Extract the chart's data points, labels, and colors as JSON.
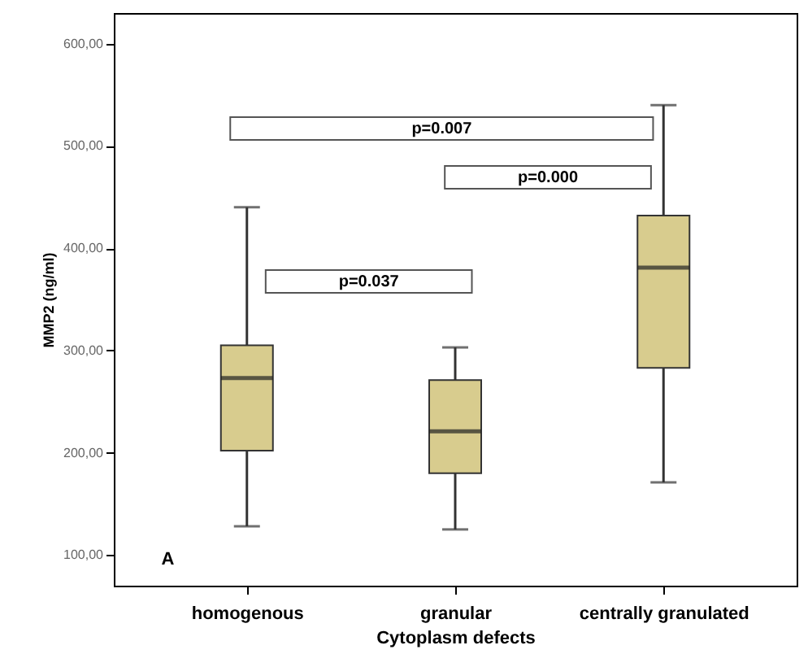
{
  "chart_data": {
    "type": "box",
    "xlabel": "Cytoplasm defects",
    "ylabel": "MMP2 (ng/ml)",
    "categories": [
      "homogenous",
      "granular",
      "centrally granulated"
    ],
    "boxes": [
      {
        "low": 128,
        "q1": 202,
        "median": 273,
        "q3": 305,
        "high": 440
      },
      {
        "low": 125,
        "q1": 180,
        "median": 221,
        "q3": 271,
        "high": 303
      },
      {
        "low": 171,
        "q1": 283,
        "median": 381,
        "q3": 432,
        "high": 540
      }
    ],
    "color": "#d8cc8e",
    "ylim": [
      70,
      630
    ],
    "yticks": [
      {
        "value": 100,
        "label": "100,00"
      },
      {
        "value": 200,
        "label": "200,00"
      },
      {
        "value": 300,
        "label": "300,00"
      },
      {
        "value": 400,
        "label": "400,00"
      },
      {
        "value": 500,
        "label": "500,00"
      },
      {
        "value": 600,
        "label": "600,00"
      }
    ],
    "grid": false,
    "annotations": [
      "p=0.007",
      "p=0.000",
      "p=0.037",
      "A"
    ]
  }
}
